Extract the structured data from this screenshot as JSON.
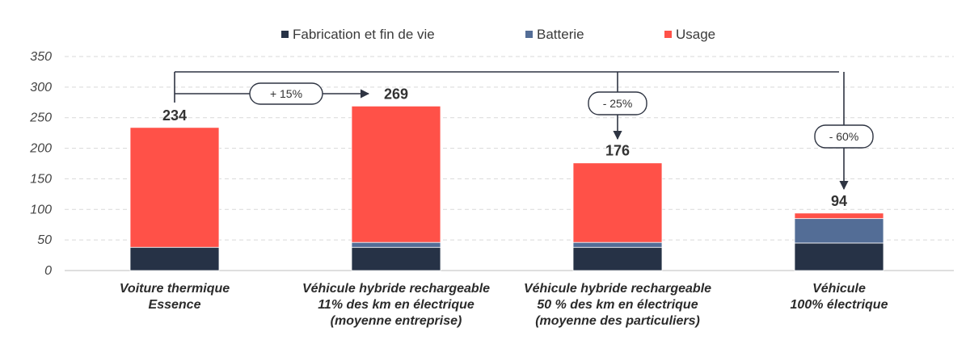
{
  "chart_data": {
    "type": "bar",
    "stacked": true,
    "title": "",
    "xlabel": "",
    "ylabel": "",
    "ylim": [
      0,
      350
    ],
    "yticks": [
      0,
      50,
      100,
      150,
      200,
      250,
      300,
      350
    ],
    "grid": true,
    "legend_position": "top",
    "categories": [
      [
        "Voiture thermique",
        "Essence"
      ],
      [
        "Véhicule hybride rechargeable",
        "11% des km en électrique",
        "(moyenne entreprise)"
      ],
      [
        "Véhicule hybride rechargeable",
        "50 % des km en électrique",
        "(moyenne des particuliers)"
      ],
      [
        "Véhicule",
        "100% électrique"
      ]
    ],
    "series": [
      {
        "name": "Fabrication et fin de vie",
        "color": "#263246",
        "values": [
          38,
          38,
          38,
          45
        ]
      },
      {
        "name": "Batterie",
        "color": "#536d96",
        "values": [
          0,
          8,
          8,
          40
        ]
      },
      {
        "name": "Usage",
        "color": "#ff5148",
        "values": [
          196,
          223,
          130,
          9
        ]
      }
    ],
    "totals": [
      "234",
      "269",
      "176",
      "94"
    ],
    "annotations": [
      {
        "label": "+ 15%",
        "from": 0,
        "to": 1
      },
      {
        "label": "- 25%",
        "from": 0,
        "to": 2
      },
      {
        "label": "- 60%",
        "from": 0,
        "to": 3
      }
    ]
  }
}
